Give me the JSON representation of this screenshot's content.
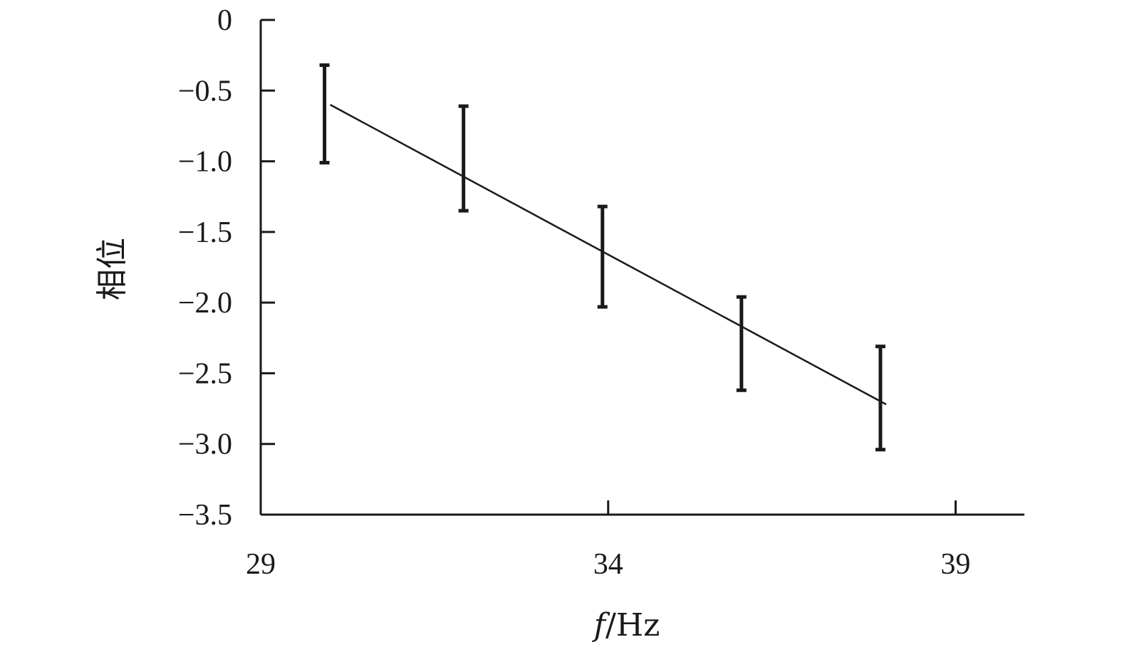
{
  "chart_data": {
    "type": "line",
    "title": "",
    "xlabel": "f/Hz",
    "xlabel_italic": "f",
    "xlabel_unit": "/Hz",
    "ylabel": "相位",
    "xlim": [
      29,
      39.99
    ],
    "ylim": [
      -3.5,
      0
    ],
    "x_ticks": [
      29,
      34,
      39
    ],
    "x_tick_labels": [
      "29",
      "34",
      "39"
    ],
    "y_ticks": [
      0,
      -0.5,
      -1.0,
      -1.5,
      -2.0,
      -2.5,
      -3.0,
      -3.5
    ],
    "y_tick_labels": [
      "0",
      "−0.5",
      "−1.0",
      "−1.5",
      "−2.0",
      "−2.5",
      "−3.0",
      "−3.5"
    ],
    "grid": false,
    "legend": "none",
    "series": [
      {
        "x": [
          30,
          32,
          34,
          36,
          38
        ],
        "y": [
          -0.6,
          -1.13,
          -1.66,
          -2.19,
          -2.72
        ],
        "err_low": [
          -1.01,
          -1.35,
          -2.03,
          -2.62,
          -3.04
        ],
        "err_high": [
          -0.32,
          -0.61,
          -1.32,
          -1.96,
          -2.31
        ],
        "color": "#1a1a1a"
      }
    ]
  }
}
